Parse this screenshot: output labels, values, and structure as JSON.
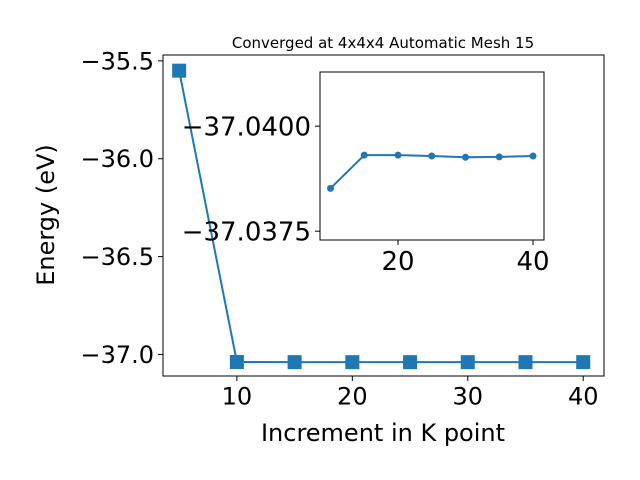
{
  "chart_data": [
    {
      "type": "line",
      "title": "Converged at 4x4x4 Automatic Mesh 15",
      "x_label": "Increment in K point",
      "y_label": "Energy (eV)",
      "x": [
        5,
        10,
        15,
        20,
        25,
        30,
        35,
        40
      ],
      "values": [
        -35.55,
        -37.0385,
        -37.0393,
        -37.0393,
        -37.0393,
        -37.0393,
        -37.0393,
        -37.0393
      ],
      "color": "#1f77b4",
      "marker": "square",
      "xlim": [
        3.6,
        41.8
      ],
      "xticks": [
        10,
        20,
        30,
        40
      ],
      "ylim": [
        -37.11,
        -35.47
      ],
      "yticks": [
        {
          "value": -37.0,
          "label": "−37.0"
        },
        {
          "value": -36.5,
          "label": "−36.5"
        },
        {
          "value": -36.0,
          "label": "−36.0"
        },
        {
          "value": -35.5,
          "label": "−35.5"
        }
      ]
    },
    {
      "type": "line",
      "x": [
        10,
        15,
        20,
        25,
        30,
        35,
        40
      ],
      "values": [
        -37.03852,
        -37.03931,
        -37.03931,
        -37.03929,
        -37.03926,
        -37.03927,
        -37.03929
      ],
      "color": "#1f77b4",
      "marker": "circle",
      "xlim": [
        8.44,
        41.63
      ],
      "xticks": [
        20,
        40
      ],
      "ylim": [
        -37.03729,
        -37.04129
      ],
      "yticks": [
        {
          "value": -37.0375,
          "label": "−37.0375"
        },
        {
          "value": -37.04,
          "label": "−37.0400"
        }
      ]
    }
  ]
}
